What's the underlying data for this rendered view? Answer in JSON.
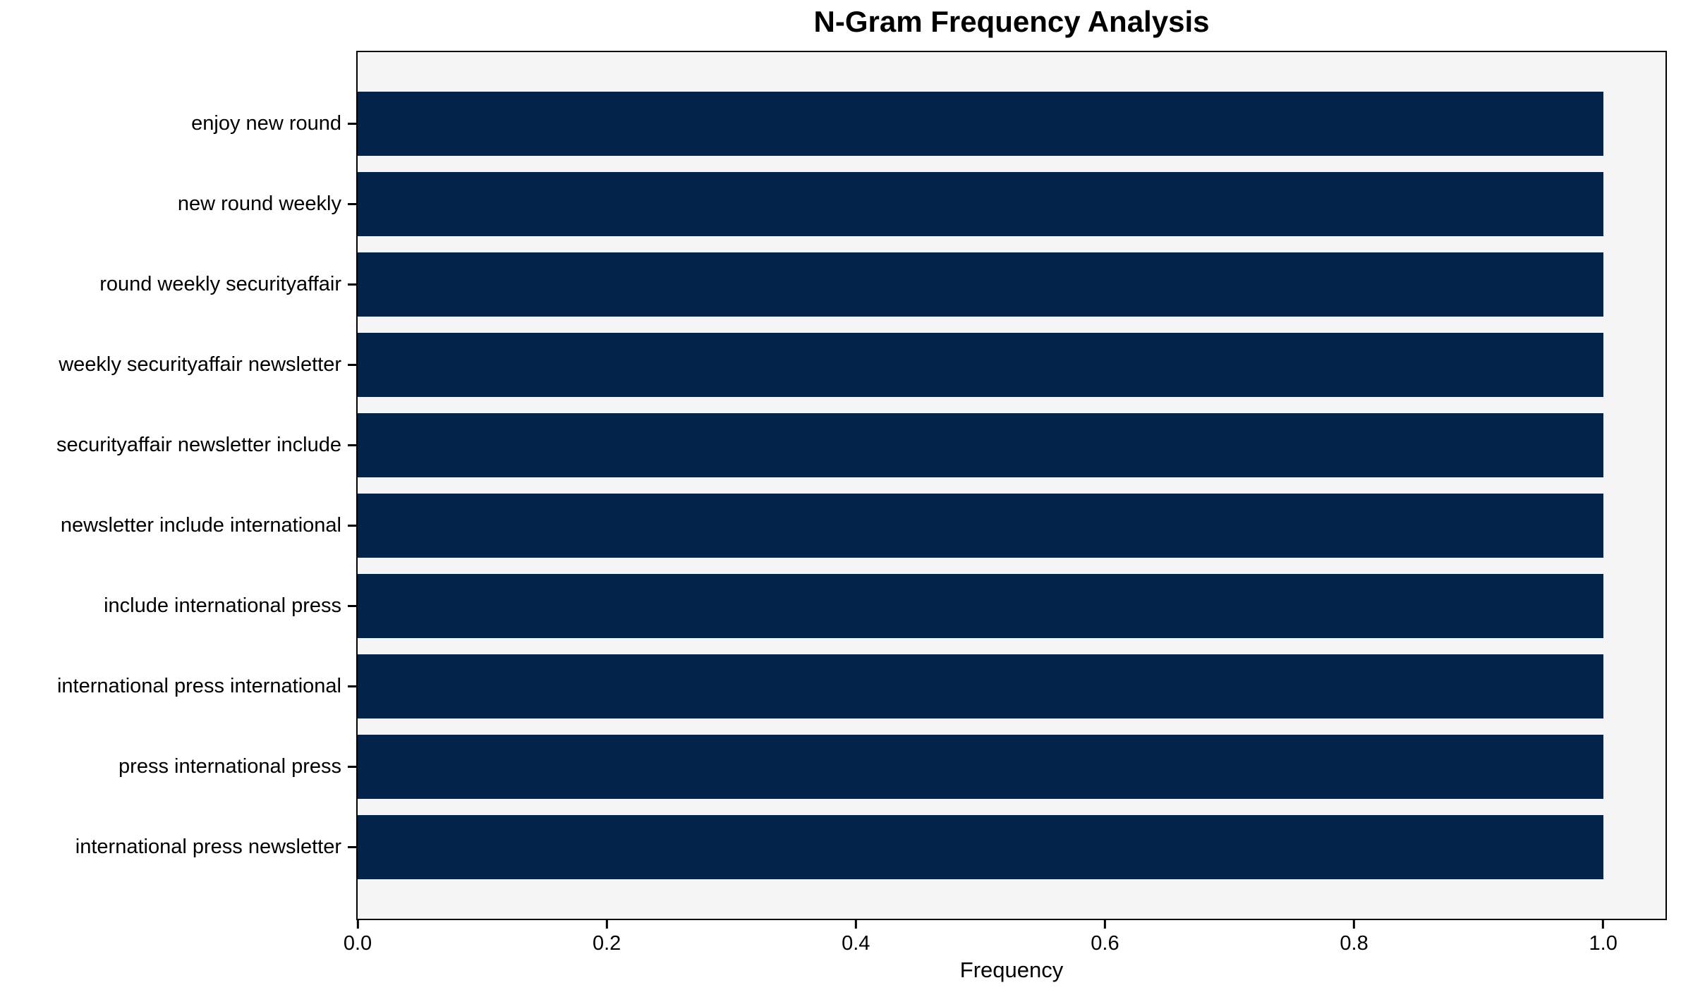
{
  "chart_data": {
    "type": "bar",
    "orientation": "horizontal",
    "title": "N-Gram Frequency Analysis",
    "xlabel": "Frequency",
    "ylabel": "",
    "categories": [
      "enjoy new round",
      "new round weekly",
      "round weekly securityaffair",
      "weekly securityaffair newsletter",
      "securityaffair newsletter include",
      "newsletter include international",
      "include international press",
      "international press international",
      "press international press",
      "international press newsletter"
    ],
    "values": [
      1.0,
      1.0,
      1.0,
      1.0,
      1.0,
      1.0,
      1.0,
      1.0,
      1.0,
      1.0
    ],
    "xticks": [
      "0.0",
      "0.2",
      "0.4",
      "0.6",
      "0.8",
      "1.0"
    ],
    "xlim": [
      0,
      1.05
    ],
    "grid": false,
    "legend_position": "none",
    "colors": {
      "bar": "#03234b",
      "plot_background": "#f5f5f5",
      "figure_background": "#ffffff",
      "text": "#000000",
      "spine": "#000000"
    }
  }
}
